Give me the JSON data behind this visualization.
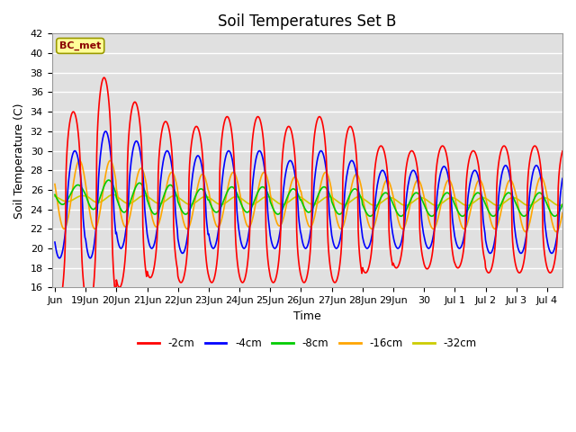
{
  "title": "Soil Temperatures Set B",
  "xlabel": "Time",
  "ylabel": "Soil Temperature (C)",
  "ylim": [
    16,
    42
  ],
  "yticks": [
    16,
    18,
    20,
    22,
    24,
    26,
    28,
    30,
    32,
    34,
    36,
    38,
    40,
    42
  ],
  "annotation_label": "BC_met",
  "annotation_color": "#8B0000",
  "annotation_bg": "#FFFF99",
  "series_colors": {
    "-2cm": "#FF0000",
    "-4cm": "#0000FF",
    "-8cm": "#00CC00",
    "-16cm": "#FFA500",
    "-32cm": "#CCCC00"
  },
  "series_linewidth": 1.2,
  "background_color": "#E0E0E0",
  "plot_bg": "#E0E0E0",
  "grid_color": "#FFFFFF",
  "title_fontsize": 12,
  "label_fontsize": 9,
  "tick_label_fontsize": 8,
  "x_tick_labels": [
    "Jun",
    "19Jun",
    "20Jun",
    "21Jun",
    "22Jun",
    "23Jun",
    "24Jun",
    "25Jun",
    "26Jun",
    "27Jun",
    "28Jun",
    "29Jun",
    "30",
    "Jul 1",
    "Jul 2",
    "Jul 3",
    "Jul 4"
  ],
  "x_tick_positions": [
    0,
    1,
    2,
    3,
    4,
    5,
    6,
    7,
    8,
    9,
    10,
    11,
    12,
    13,
    14,
    15,
    16
  ]
}
